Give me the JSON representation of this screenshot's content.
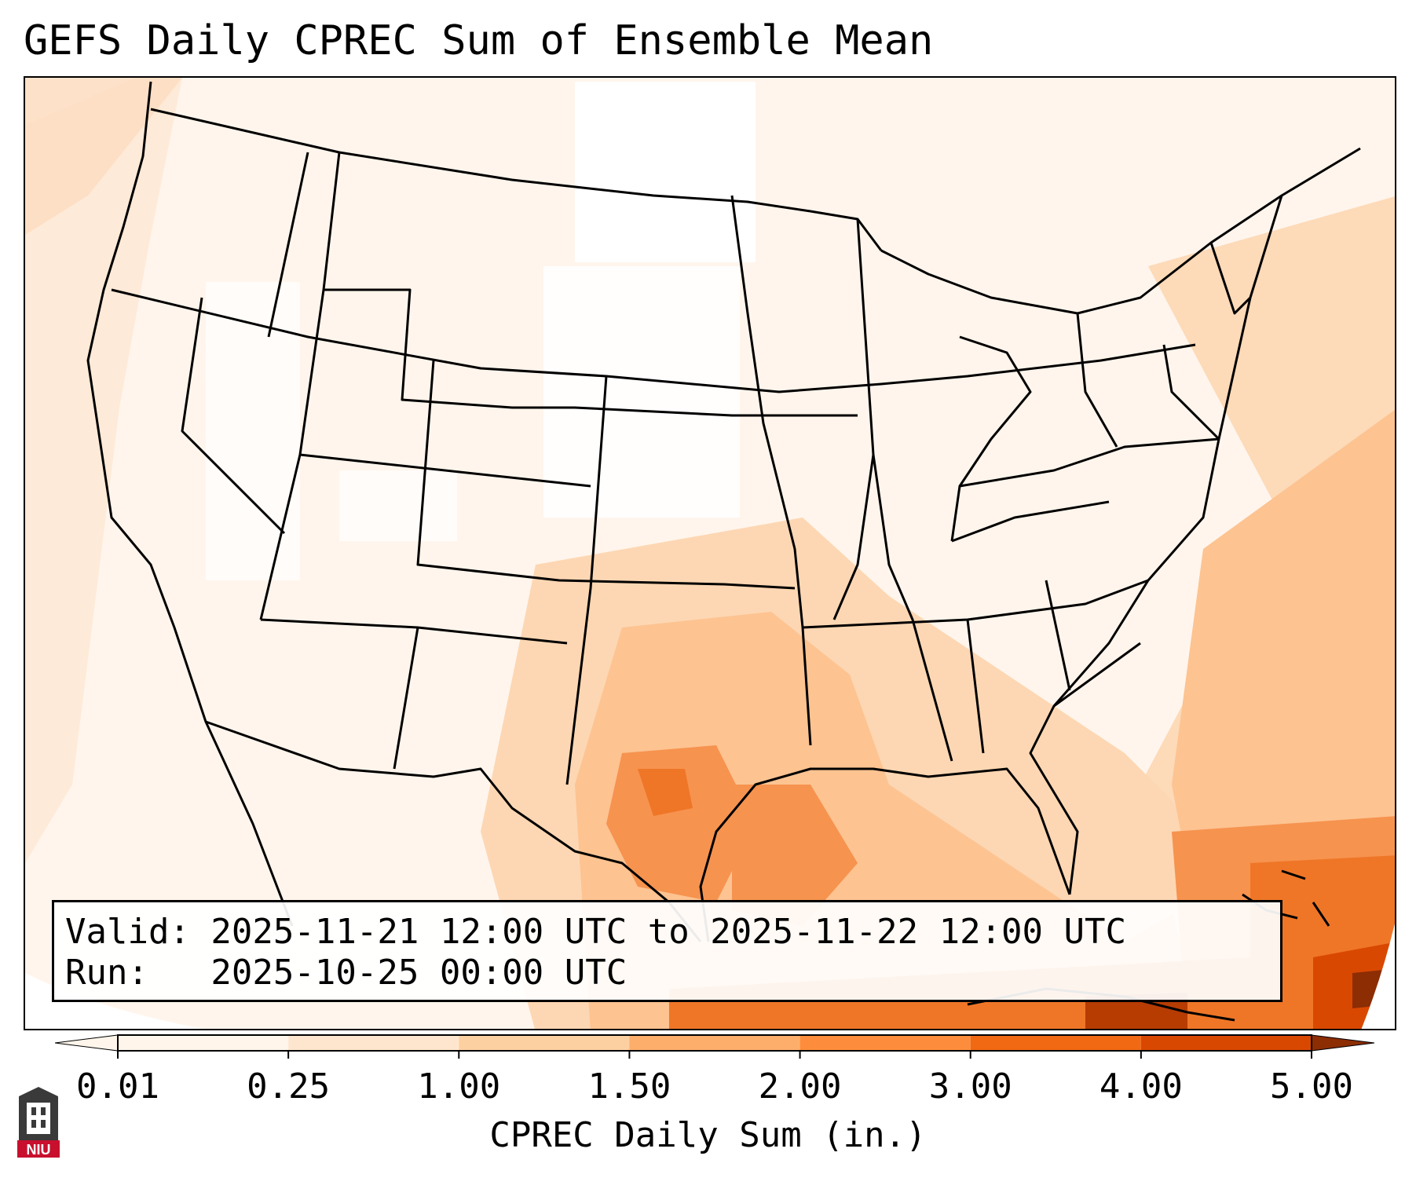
{
  "title": "GEFS Daily CPREC Sum of Ensemble Mean",
  "info": {
    "valid_line": "Valid: 2025-11-21 12:00 UTC to 2025-11-22 12:00 UTC",
    "run_line": "Run:   2025-10-25 00:00 UTC"
  },
  "colorbar": {
    "label": "CPREC Daily Sum (in.)",
    "ticks": [
      "0.01",
      "0.25",
      "1.00",
      "1.50",
      "2.00",
      "3.00",
      "4.00",
      "5.00"
    ],
    "colors": [
      "#fff5eb",
      "#fee6ce",
      "#fdd0a2",
      "#fdae6b",
      "#fd8d3c",
      "#f16913",
      "#d94801",
      "#8c2d04"
    ]
  },
  "logo": {
    "text": "NIU",
    "colors": {
      "crest": "#3a3a3a",
      "banner": "#c8102e"
    }
  }
}
